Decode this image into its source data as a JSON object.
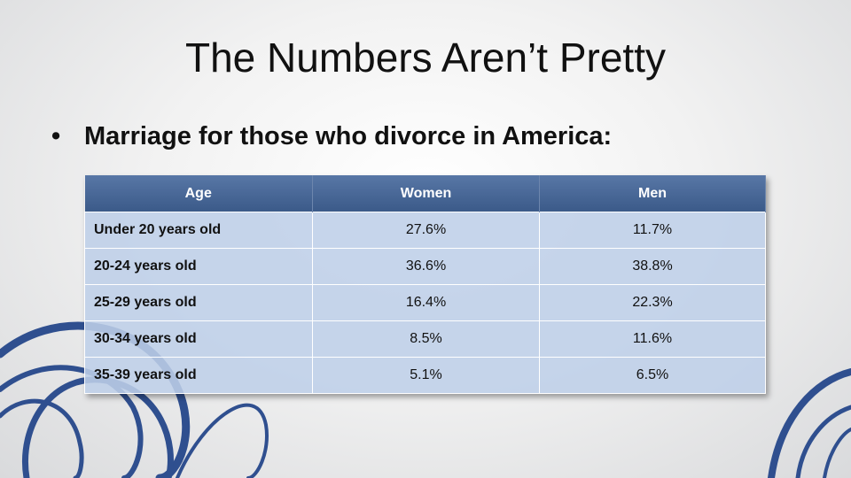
{
  "header": {
    "title": "The Numbers Aren’t Pretty"
  },
  "bullet": {
    "text": "Marriage for those who divorce in America:"
  },
  "table": {
    "columns": [
      "Age",
      "Women",
      "Men"
    ],
    "rows": [
      [
        "Under 20 years old",
        "27.6%",
        "11.7%"
      ],
      [
        "20-24 years old",
        "36.6%",
        "38.8%"
      ],
      [
        "25-29 years old",
        "16.4%",
        "22.3%"
      ],
      [
        "30-34 years old",
        "8.5%",
        "11.6%"
      ],
      [
        "35-39 years old",
        "5.1%",
        "6.5%"
      ]
    ]
  }
}
